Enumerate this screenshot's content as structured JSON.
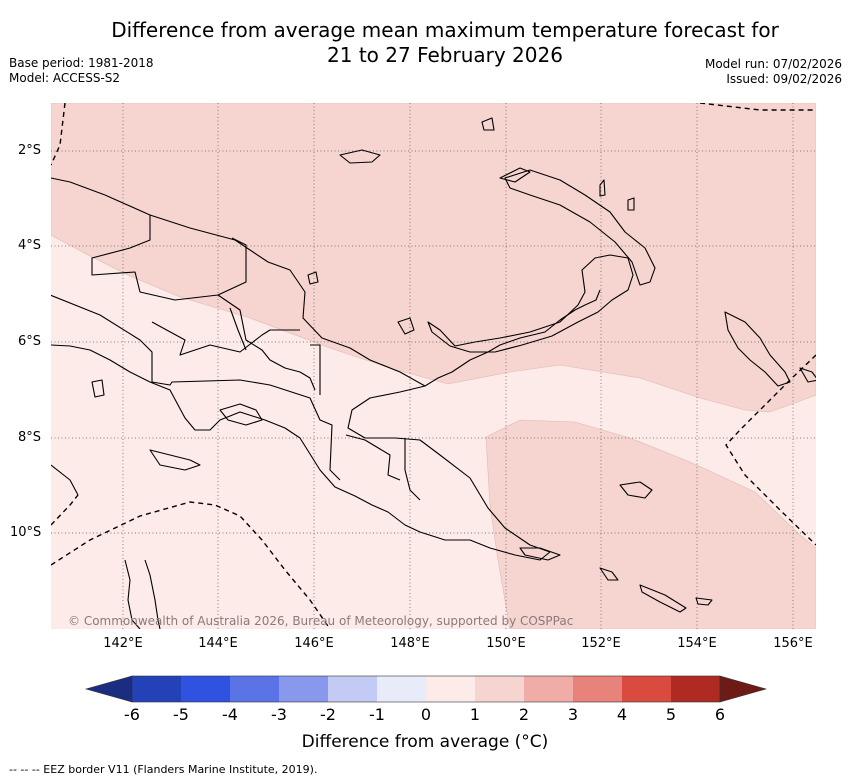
{
  "header": {
    "title_line1": "Difference from average mean maximum temperature forecast for",
    "title_line2": "21 to 27 February 2026",
    "base_period": "Base period: 1981-2018",
    "model": "Model: ACCESS-S2",
    "model_run": "Model run: 07/02/2026",
    "issued": "Issued: 09/02/2026"
  },
  "map": {
    "lat_labels": [
      "2°S",
      "4°S",
      "6°S",
      "8°S",
      "10°S"
    ],
    "lon_labels": [
      "142°E",
      "144°E",
      "146°E",
      "148°E",
      "150°E",
      "152°E",
      "154°E",
      "156°E"
    ],
    "copyright": "© Commonwealth of Australia 2026, Bureau of Meteorology, supported by COSPPac",
    "colors": {
      "anomaly_0_1": "#fcebe8",
      "anomaly_1_2": "#f6d5d1",
      "land_outline": "#000000"
    }
  },
  "colorbar": {
    "ticks": [
      "-6",
      "-5",
      "-4",
      "-3",
      "-2",
      "-1",
      "0",
      "1",
      "2",
      "3",
      "4",
      "5",
      "6"
    ],
    "colors": [
      "#1a2d80",
      "#2342b8",
      "#2f52e0",
      "#5a73e6",
      "#8898ec",
      "#c3cbf5",
      "#e8ebfa",
      "#fcebe8",
      "#f6d5d1",
      "#f0ada8",
      "#e7837b",
      "#d94b3f",
      "#ae2a23",
      "#6e1a16"
    ],
    "label": "Difference from average (°C)"
  },
  "footnote": "-- -- -- EEZ border V11 (Flanders Marine Institute, 2019)."
}
